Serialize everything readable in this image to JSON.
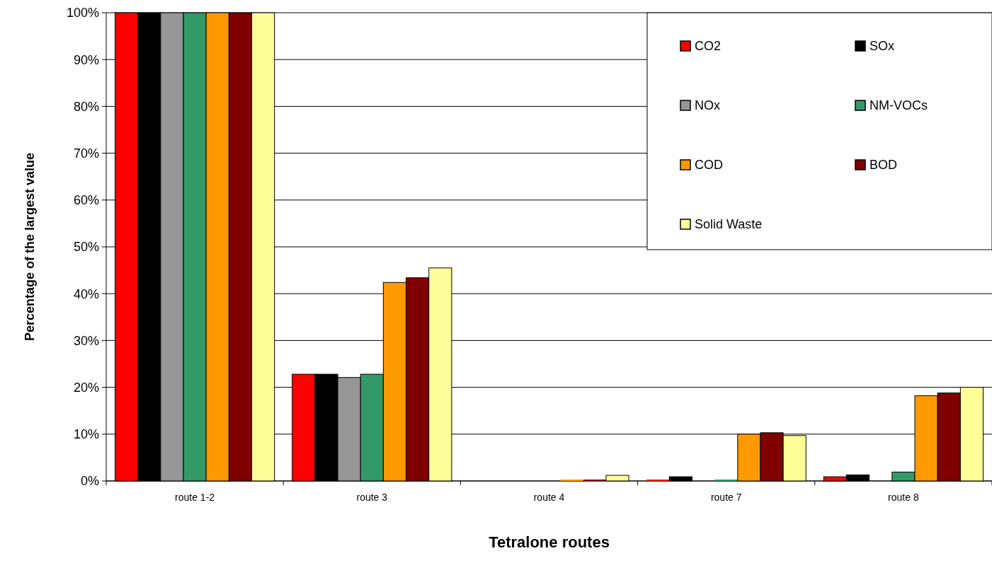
{
  "chart_data": {
    "type": "bar",
    "xlabel": "Tetralone routes",
    "ylabel": "Percentage of the largest value",
    "categories": [
      "route 1-2",
      "route 3",
      "route 4",
      "route 7",
      "route 8"
    ],
    "series": [
      {
        "name": "CO2",
        "color": "#ff0000",
        "values": [
          100,
          22.8,
          0,
          0.3,
          0.9
        ]
      },
      {
        "name": "SOx",
        "color": "#000000",
        "values": [
          100,
          22.8,
          0,
          0.9,
          1.3
        ]
      },
      {
        "name": "NOx",
        "color": "#969696",
        "values": [
          100,
          22.1,
          0,
          0,
          0
        ]
      },
      {
        "name": "NM-VOCs",
        "color": "#339966",
        "values": [
          100,
          22.8,
          0,
          0.3,
          1.9
        ]
      },
      {
        "name": "COD",
        "color": "#ff9900",
        "values": [
          100,
          42.4,
          0.3,
          10,
          18.2
        ]
      },
      {
        "name": "BOD",
        "color": "#800000",
        "values": [
          100,
          43.4,
          0.3,
          10.3,
          18.8
        ]
      },
      {
        "name": "Solid Waste",
        "color": "#ffff99",
        "values": [
          100,
          45.5,
          1.2,
          9.7,
          20
        ]
      }
    ],
    "ylim": [
      0,
      100
    ],
    "yticks": [
      {
        "value": 0,
        "label": "0%"
      },
      {
        "value": 10,
        "label": "10%"
      },
      {
        "value": 20,
        "label": "20%"
      },
      {
        "value": 30,
        "label": "30%"
      },
      {
        "value": 40,
        "label": "40%"
      },
      {
        "value": 50,
        "label": "50%"
      },
      {
        "value": 60,
        "label": "60%"
      },
      {
        "value": 70,
        "label": "70%"
      },
      {
        "value": 80,
        "label": "80%"
      },
      {
        "value": 90,
        "label": "90%"
      },
      {
        "value": 100,
        "label": "100%"
      }
    ],
    "grid": "y",
    "legend": "top right"
  }
}
